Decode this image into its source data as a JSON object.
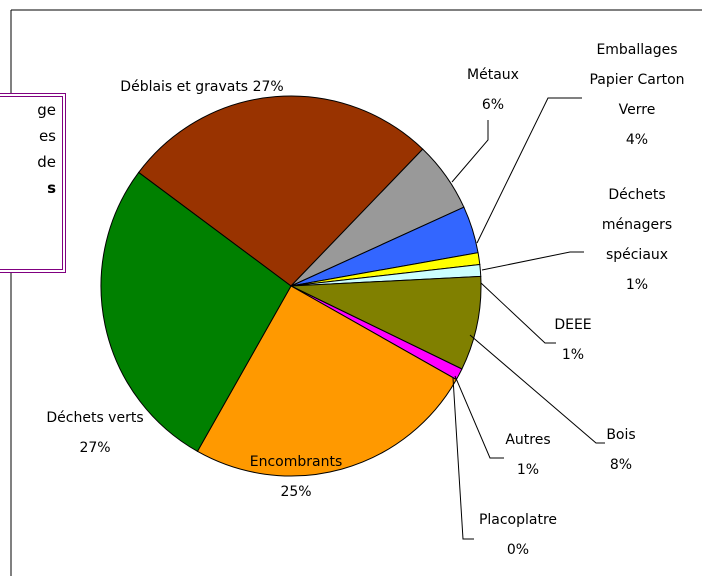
{
  "chart_data": {
    "type": "pie",
    "categories": [
      "Déblais et gravats",
      "Métaux",
      "Emballages Papier Carton Verre",
      "Déchets ménagers spéciaux",
      "DEEE",
      "Bois",
      "Autres",
      "Placoplatre",
      "Encombrants",
      "Déchets verts"
    ],
    "values": [
      27,
      6,
      4,
      1,
      1,
      8,
      1,
      0,
      25,
      27
    ],
    "value_labels": [
      "27%",
      "6%",
      "4%",
      "1%",
      "1%",
      "8%",
      "1%",
      "0%",
      "25%",
      "27%"
    ],
    "colors": [
      "#993300",
      "#999999",
      "#3366ff",
      "#ffff00",
      "#ccffff",
      "#808000",
      "#ff00ff",
      "#ff0000",
      "#ff9900",
      "#008000"
    ]
  },
  "side_note": {
    "lines": [
      "ge",
      "es",
      "de",
      "s"
    ]
  }
}
